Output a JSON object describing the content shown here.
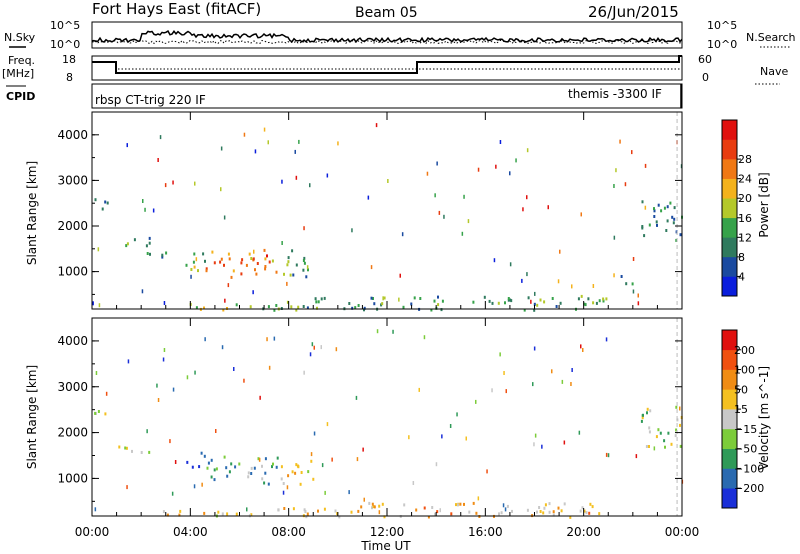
{
  "header": {
    "station": "Fort Hays East (fitACF)",
    "beam": "Beam 05",
    "date": "26/Jun/2015"
  },
  "top_panels": {
    "nsky_label": "N.Sky",
    "nsky_ticks": [
      "10^5",
      "10^0"
    ],
    "nsearch_label": "N.Search",
    "nsearch_ticks": [
      "10^5",
      "10^0"
    ],
    "freq_label": "Freq.",
    "freq_unit": "[MHz]",
    "freq_ticks": [
      "18",
      "8"
    ],
    "nave_label": "Nave",
    "nave_ticks": [
      "60",
      "0"
    ],
    "cpid_label": "CPID",
    "cpid_left": "rbsp CT-trig 220 IF",
    "cpid_right": "themis -3300 IF"
  },
  "chart_data": [
    {
      "type": "heatmap",
      "name": "power",
      "ylabel": "Slant Range [km]",
      "yticks": [
        1000,
        2000,
        3000,
        4000
      ],
      "ylim": [
        180,
        4500
      ],
      "xlim": [
        0,
        24
      ],
      "colorbar": {
        "label": "Power [dB]",
        "ticks": [
          "4",
          "8",
          "12",
          "16",
          "20",
          "24",
          "28"
        ],
        "colors": [
          "#0a1edc",
          "#1a4aa0",
          "#2f7a5e",
          "#36a24a",
          "#b4c82a",
          "#f4b21c",
          "#f07814",
          "#e83c10",
          "#e0100e"
        ]
      },
      "echo_regions": [
        {
          "t0": 0.0,
          "t1": 0.6,
          "r0": 2300,
          "r1": 2650,
          "level": 0.25
        },
        {
          "t0": 1.0,
          "t1": 2.5,
          "r0": 1550,
          "r1": 1800,
          "level": 0.3
        },
        {
          "t0": 2.0,
          "t1": 3.0,
          "r0": 1300,
          "r1": 1600,
          "level": 0.25
        },
        {
          "t0": 3.8,
          "t1": 4.6,
          "r0": 1000,
          "r1": 1600,
          "level": 0.45
        },
        {
          "t0": 4.6,
          "t1": 7.6,
          "r0": 900,
          "r1": 1500,
          "level": 0.72
        },
        {
          "t0": 7.6,
          "t1": 9.0,
          "r0": 900,
          "r1": 1500,
          "level": 0.35
        },
        {
          "t0": 2.5,
          "t1": 7.5,
          "r0": 180,
          "r1": 320,
          "level": 0.45
        },
        {
          "t0": 7.5,
          "t1": 21.0,
          "r0": 180,
          "r1": 500,
          "level": 0.35
        },
        {
          "t0": 21.5,
          "t1": 22.0,
          "r0": 700,
          "r1": 1000,
          "level": 0.25
        },
        {
          "t0": 22.3,
          "t1": 24.0,
          "r0": 1700,
          "r1": 2600,
          "level": 0.3
        }
      ]
    },
    {
      "type": "heatmap",
      "name": "velocity",
      "ylabel": "Slant Range [km]",
      "xlabel": "Time UT",
      "yticks": [
        1000,
        2000,
        3000,
        4000
      ],
      "xticks": [
        "00:00",
        "04:00",
        "08:00",
        "12:00",
        "16:00",
        "20:00",
        "00:00"
      ],
      "ylim": [
        180,
        4500
      ],
      "xlim": [
        0,
        24
      ],
      "colorbar": {
        "label": "Velocity [m s^-1]",
        "ticks": [
          "200",
          "100",
          "50",
          "15",
          "-15",
          "-50",
          "-100",
          "-200"
        ],
        "colors": [
          "#1a2fd8",
          "#2a6ab0",
          "#2f9a58",
          "#7ccc3a",
          "#c8c8c8",
          "#f4c020",
          "#f08c14",
          "#f05010",
          "#e0100e"
        ]
      },
      "echo_regions": [
        {
          "t0": 0.0,
          "t1": 0.6,
          "r0": 2300,
          "r1": 2650,
          "level": 0.45
        },
        {
          "t0": 1.0,
          "t1": 2.5,
          "r0": 1550,
          "r1": 1800,
          "level": 0.45
        },
        {
          "t0": 3.8,
          "t1": 4.6,
          "r0": 1200,
          "r1": 1600,
          "level": 0.05
        },
        {
          "t0": 4.6,
          "t1": 7.6,
          "r0": 900,
          "r1": 1500,
          "level": 0.3
        },
        {
          "t0": 7.6,
          "t1": 9.0,
          "r0": 900,
          "r1": 1500,
          "level": 0.6
        },
        {
          "t0": 2.5,
          "t1": 7.5,
          "r0": 180,
          "r1": 320,
          "level": 0.6
        },
        {
          "t0": 7.5,
          "t1": 21.0,
          "r0": 180,
          "r1": 500,
          "level": 0.62
        },
        {
          "t0": 22.3,
          "t1": 24.0,
          "r0": 1700,
          "r1": 2600,
          "level": 0.45
        }
      ]
    }
  ]
}
